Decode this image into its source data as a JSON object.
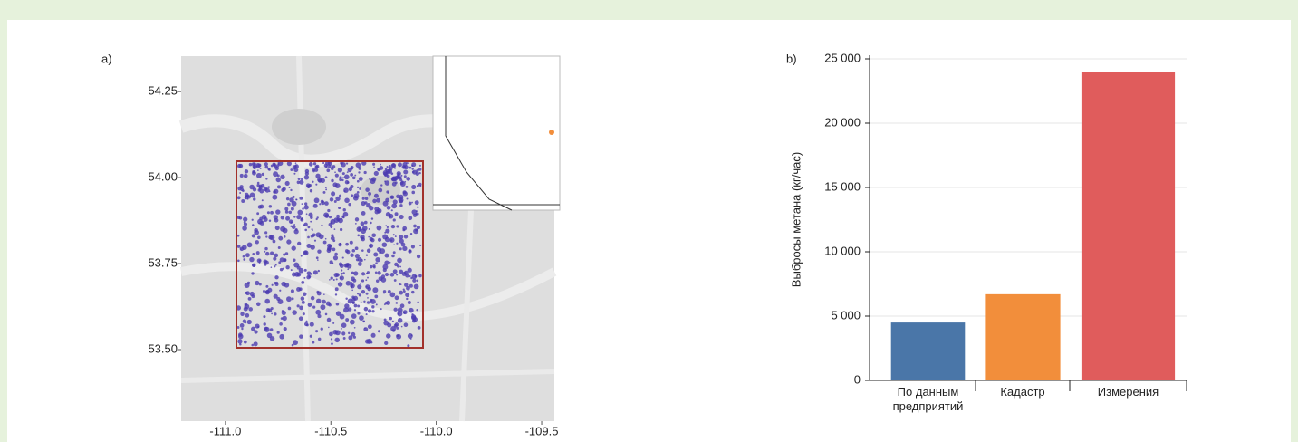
{
  "map": {
    "label": "a)",
    "xlim": [
      -111.21,
      -109.44
    ],
    "ylim": [
      53.292,
      54.353
    ],
    "xticks": [
      {
        "value": -111.0,
        "label": "-111.0"
      },
      -110.5,
      {
        "value": -110.0,
        "label": "-110.0"
      },
      -109.5
    ],
    "yticks": [
      54.25,
      {
        "value": 54.0,
        "label": "54.00"
      },
      53.75,
      {
        "value": 53.5,
        "label": "53.50"
      }
    ]
  },
  "chart_data": {
    "type": "bar",
    "label": "b)",
    "y_label": "Выбросы метана (кг/час)",
    "categories": [
      "По данным предприятий",
      "Кадастр",
      "Измерения"
    ],
    "values": [
      4500,
      6700,
      24000
    ],
    "colors": [
      "#4a76a8",
      "#f28e3b",
      "#e05c5c"
    ],
    "ylim": [
      0,
      25000
    ],
    "yticks": [
      {
        "value": 0,
        "label": "0"
      },
      {
        "value": 5000,
        "label": "5 000"
      },
      {
        "value": 10000,
        "label": "10 000"
      },
      {
        "value": 15000,
        "label": "15 000"
      },
      {
        "value": 20000,
        "label": "20 000"
      },
      {
        "value": 25000,
        "label": "25 000"
      }
    ],
    "grid": true
  }
}
